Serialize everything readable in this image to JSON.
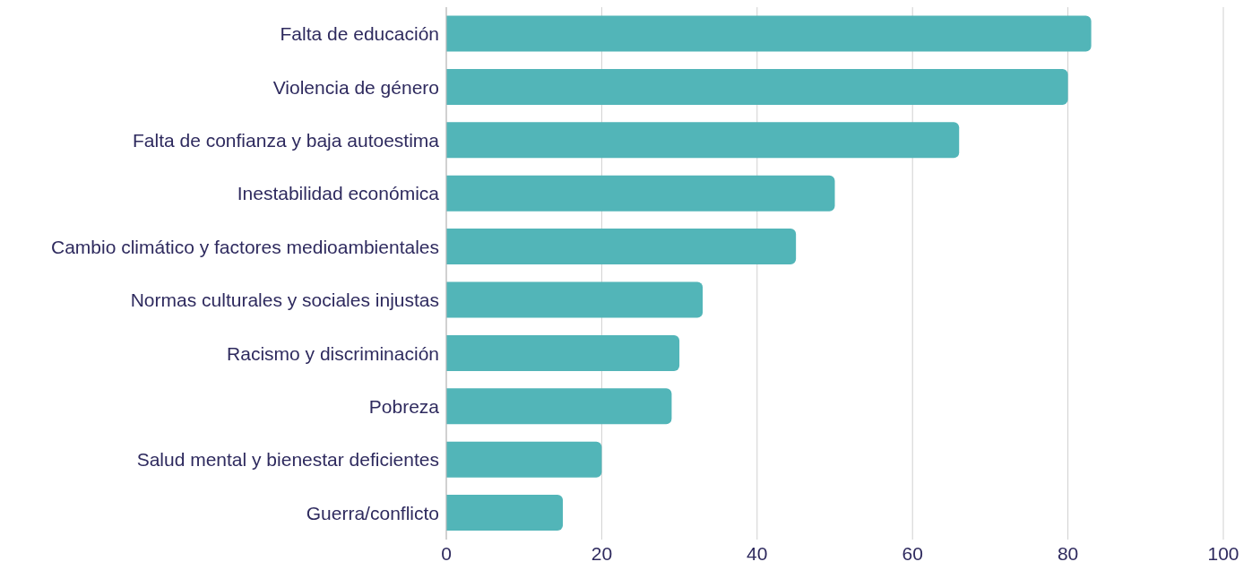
{
  "chart_data": {
    "type": "bar",
    "orientation": "horizontal",
    "categories": [
      "Falta de educación",
      "Violencia de género",
      "Falta de confianza y baja autoestima",
      "Inestabilidad económica",
      "Cambio climático y factores medioambientales",
      "Normas culturales y sociales injustas",
      "Racismo y discriminación",
      "Pobreza",
      "Salud mental y bienestar deficientes",
      "Guerra/conflicto"
    ],
    "values": [
      83,
      80,
      66,
      50,
      45,
      33,
      30,
      29,
      20,
      15
    ],
    "color": "#52b5b8",
    "xlim": [
      0,
      100
    ],
    "xticks": [
      0,
      20,
      40,
      60,
      80,
      100
    ],
    "grid": "x"
  }
}
